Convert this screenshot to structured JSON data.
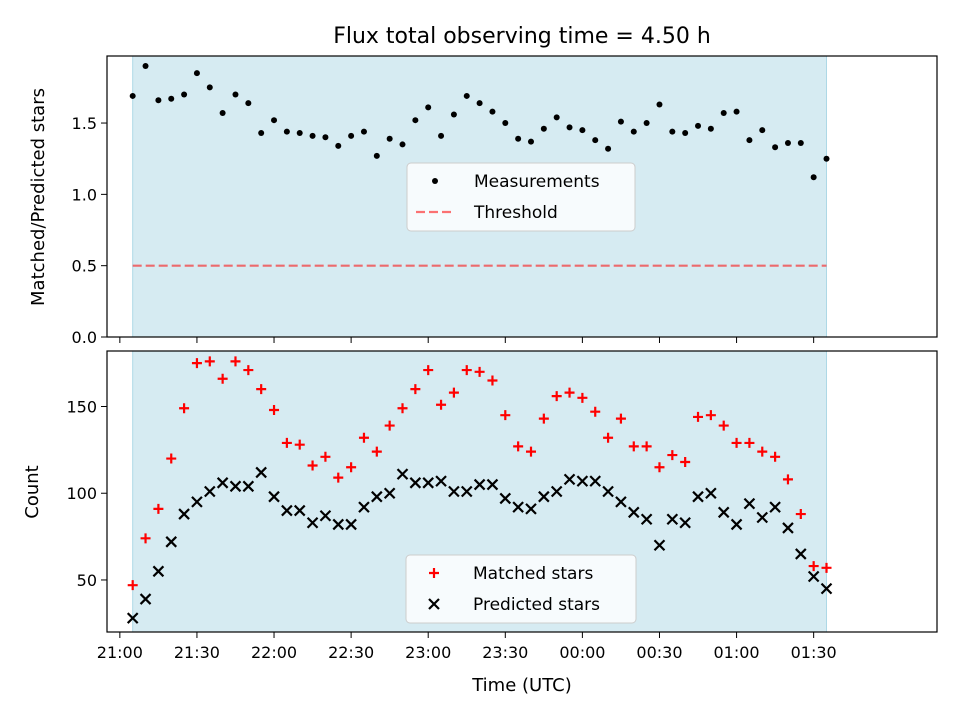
{
  "title": "Flux total observing time = 4.50 h",
  "colors": {
    "span": "#add8e6",
    "measure": "#000000",
    "threshold": "#ff0000",
    "matched": "#ff0000",
    "predicted": "#000000"
  },
  "chart_data": [
    {
      "type": "scatter",
      "title": "Flux total observing time = 4.50 h",
      "ylabel": "Matched/Predicted stars",
      "xlabel": "",
      "x_unit": "minutes after 21:00 UTC",
      "xlim": [
        -5,
        318
      ],
      "ylim": [
        0,
        1.97
      ],
      "yticks": [
        0.0,
        0.5,
        1.0,
        1.5
      ],
      "ytick_labels": [
        "0.0",
        "0.5",
        "1.0",
        "1.5"
      ],
      "shaded_span": [
        5,
        275
      ],
      "threshold": 0.5,
      "legend": {
        "position": "center",
        "items": [
          "Measurements",
          "Threshold"
        ]
      },
      "series": [
        {
          "name": "Measurements",
          "x": [
            5,
            10,
            15,
            20,
            25,
            30,
            35,
            40,
            45,
            50,
            55,
            60,
            65,
            70,
            75,
            80,
            85,
            90,
            95,
            100,
            105,
            110,
            115,
            120,
            125,
            130,
            135,
            140,
            145,
            150,
            155,
            160,
            165,
            170,
            175,
            180,
            185,
            190,
            195,
            200,
            205,
            210,
            215,
            220,
            225,
            230,
            235,
            240,
            245,
            250,
            255,
            260,
            265,
            270,
            275
          ],
          "values": [
            1.69,
            1.9,
            1.66,
            1.67,
            1.7,
            1.85,
            1.75,
            1.57,
            1.7,
            1.64,
            1.43,
            1.52,
            1.44,
            1.43,
            1.41,
            1.4,
            1.34,
            1.41,
            1.44,
            1.27,
            1.39,
            1.35,
            1.52,
            1.61,
            1.41,
            1.56,
            1.69,
            1.64,
            1.58,
            1.5,
            1.39,
            1.37,
            1.46,
            1.54,
            1.47,
            1.45,
            1.38,
            1.32,
            1.51,
            1.44,
            1.5,
            1.63,
            1.44,
            1.43,
            1.48,
            1.46,
            1.57,
            1.58,
            1.38,
            1.45,
            1.33,
            1.36,
            1.36,
            1.12,
            1.25
          ]
        }
      ]
    },
    {
      "type": "scatter",
      "xlabel": "Time (UTC)",
      "ylabel": "Count",
      "x_unit": "minutes after 21:00 UTC",
      "xlim": [
        -5,
        318
      ],
      "ylim": [
        20,
        182
      ],
      "yticks": [
        50,
        100,
        150
      ],
      "ytick_labels": [
        "50",
        "100",
        "150"
      ],
      "xticks": [
        0,
        30,
        60,
        90,
        120,
        150,
        180,
        210,
        240,
        270
      ],
      "xtick_labels": [
        "21:00",
        "21:30",
        "22:00",
        "22:30",
        "23:00",
        "23:30",
        "00:00",
        "00:30",
        "01:00",
        "01:30"
      ],
      "shaded_span": [
        5,
        275
      ],
      "legend": {
        "position": "lower center",
        "items": [
          "Matched stars",
          "Predicted stars"
        ]
      },
      "series": [
        {
          "name": "Matched stars",
          "marker": "+",
          "x": [
            5,
            10,
            15,
            20,
            25,
            30,
            35,
            40,
            45,
            50,
            55,
            60,
            65,
            70,
            75,
            80,
            85,
            90,
            95,
            100,
            105,
            110,
            115,
            120,
            125,
            130,
            135,
            140,
            145,
            150,
            155,
            160,
            165,
            170,
            175,
            180,
            185,
            190,
            195,
            200,
            205,
            210,
            215,
            220,
            225,
            230,
            235,
            240,
            245,
            250,
            255,
            260,
            265,
            270,
            275
          ],
          "values": [
            47,
            74,
            91,
            120,
            149,
            175,
            176,
            166,
            176,
            171,
            160,
            148,
            129,
            128,
            116,
            121,
            109,
            115,
            132,
            124,
            139,
            149,
            160,
            171,
            151,
            158,
            171,
            170,
            165,
            145,
            127,
            124,
            143,
            156,
            158,
            155,
            147,
            132,
            143,
            127,
            127,
            115,
            122,
            118,
            144,
            145,
            139,
            129,
            129,
            124,
            121,
            108,
            88,
            58,
            57
          ]
        },
        {
          "name": "Predicted stars",
          "marker": "x",
          "x": [
            5,
            10,
            15,
            20,
            25,
            30,
            35,
            40,
            45,
            50,
            55,
            60,
            65,
            70,
            75,
            80,
            85,
            90,
            95,
            100,
            105,
            110,
            115,
            120,
            125,
            130,
            135,
            140,
            145,
            150,
            155,
            160,
            165,
            170,
            175,
            180,
            185,
            190,
            195,
            200,
            205,
            210,
            215,
            220,
            225,
            230,
            235,
            240,
            245,
            250,
            255,
            260,
            265,
            270,
            275
          ],
          "values": [
            28,
            39,
            55,
            72,
            88,
            95,
            101,
            106,
            104,
            104,
            112,
            98,
            90,
            90,
            83,
            87,
            82,
            82,
            92,
            98,
            100,
            111,
            106,
            106,
            107,
            101,
            101,
            105,
            105,
            97,
            92,
            91,
            98,
            101,
            108,
            107,
            107,
            101,
            95,
            89,
            85,
            70,
            85,
            83,
            98,
            100,
            89,
            82,
            94,
            86,
            92,
            80,
            65,
            52,
            45
          ]
        }
      ]
    }
  ]
}
